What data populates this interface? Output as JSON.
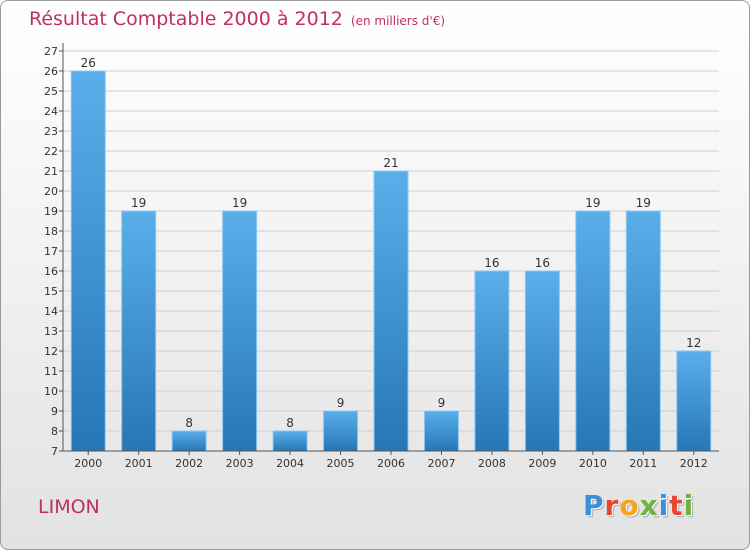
{
  "title": "Résultat Comptable 2000 à 2012",
  "unit_note": "(en milliers d'€)",
  "commune": "LIMON",
  "logo": {
    "letters": [
      "P",
      "r",
      "o",
      "x",
      "i",
      "t",
      "i"
    ],
    "colors": [
      "#3a8fd8",
      "#e8462e",
      "#f2a81d",
      "#6cb33f",
      "#3a8fd8",
      "#e8462e",
      "#6cb33f"
    ]
  },
  "colors": {
    "bar_top": "#5aafea",
    "bar_bottom": "#2776b6",
    "grid": "#cfcfcf",
    "axis": "#555555",
    "text": "#333333",
    "accent": "#c0305a"
  },
  "chart_data": {
    "type": "bar",
    "title": "Résultat Comptable 2000 à 2012",
    "xlabel": "",
    "ylabel": "",
    "categories": [
      "2000",
      "2001",
      "2002",
      "2003",
      "2004",
      "2005",
      "2006",
      "2007",
      "2008",
      "2009",
      "2010",
      "2011",
      "2012"
    ],
    "values": [
      26,
      19,
      8,
      19,
      8,
      9,
      21,
      9,
      16,
      16,
      19,
      19,
      12
    ],
    "ylim": [
      7,
      27
    ],
    "yticks": [
      7,
      8,
      9,
      10,
      11,
      12,
      13,
      14,
      15,
      16,
      17,
      18,
      19,
      20,
      21,
      22,
      23,
      24,
      25,
      26,
      27
    ],
    "grid": true,
    "data_labels": true
  }
}
